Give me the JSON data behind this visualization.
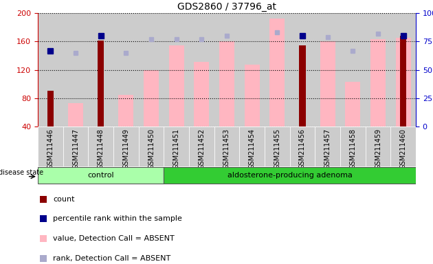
{
  "title": "GDS2860 / 37796_at",
  "samples": [
    "GSM211446",
    "GSM211447",
    "GSM211448",
    "GSM211449",
    "GSM211450",
    "GSM211451",
    "GSM211452",
    "GSM211453",
    "GSM211454",
    "GSM211455",
    "GSM211456",
    "GSM211457",
    "GSM211458",
    "GSM211459",
    "GSM211460"
  ],
  "ctrl_count": 5,
  "aden_count": 10,
  "dark_red_bars": {
    "GSM211446": 91,
    "GSM211448": 161,
    "GSM211456": 155,
    "GSM211460": 168
  },
  "pink_bars": {
    "GSM211447": 73,
    "GSM211449": 85,
    "GSM211450": 120,
    "GSM211451": 155,
    "GSM211452": 131,
    "GSM211453": 160,
    "GSM211454": 128,
    "GSM211455": 192,
    "GSM211457": 160,
    "GSM211458": 103,
    "GSM211459": 163,
    "GSM211460": 165
  },
  "dark_blue_squares": {
    "GSM211446": 67,
    "GSM211448": 80,
    "GSM211456": 80,
    "GSM211460": 80
  },
  "light_blue_squares": {
    "GSM211447": 65,
    "GSM211449": 65,
    "GSM211450": 77,
    "GSM211451": 77,
    "GSM211452": 77,
    "GSM211453": 80,
    "GSM211455": 83,
    "GSM211457": 79,
    "GSM211458": 67,
    "GSM211459": 82,
    "GSM211460": 80
  },
  "ylim_left": [
    40,
    200
  ],
  "ylim_right": [
    0,
    100
  ],
  "yticks_left": [
    40,
    80,
    120,
    160,
    200
  ],
  "yticks_right": [
    0,
    25,
    50,
    75,
    100
  ],
  "dark_red_color": "#8B0000",
  "pink_color": "#FFB6C1",
  "dark_blue_color": "#00008B",
  "light_blue_color": "#AAAACC",
  "control_color": "#AAFFAA",
  "adenoma_color": "#33CC33",
  "bg_color": "#CCCCCC",
  "left_axis_color": "#CC0000",
  "right_axis_color": "#0000CC",
  "legend_items": [
    {
      "color": "#8B0000",
      "label": "count"
    },
    {
      "color": "#00008B",
      "label": "percentile rank within the sample"
    },
    {
      "color": "#FFB6C1",
      "label": "value, Detection Call = ABSENT"
    },
    {
      "color": "#AAAACC",
      "label": "rank, Detection Call = ABSENT"
    }
  ]
}
